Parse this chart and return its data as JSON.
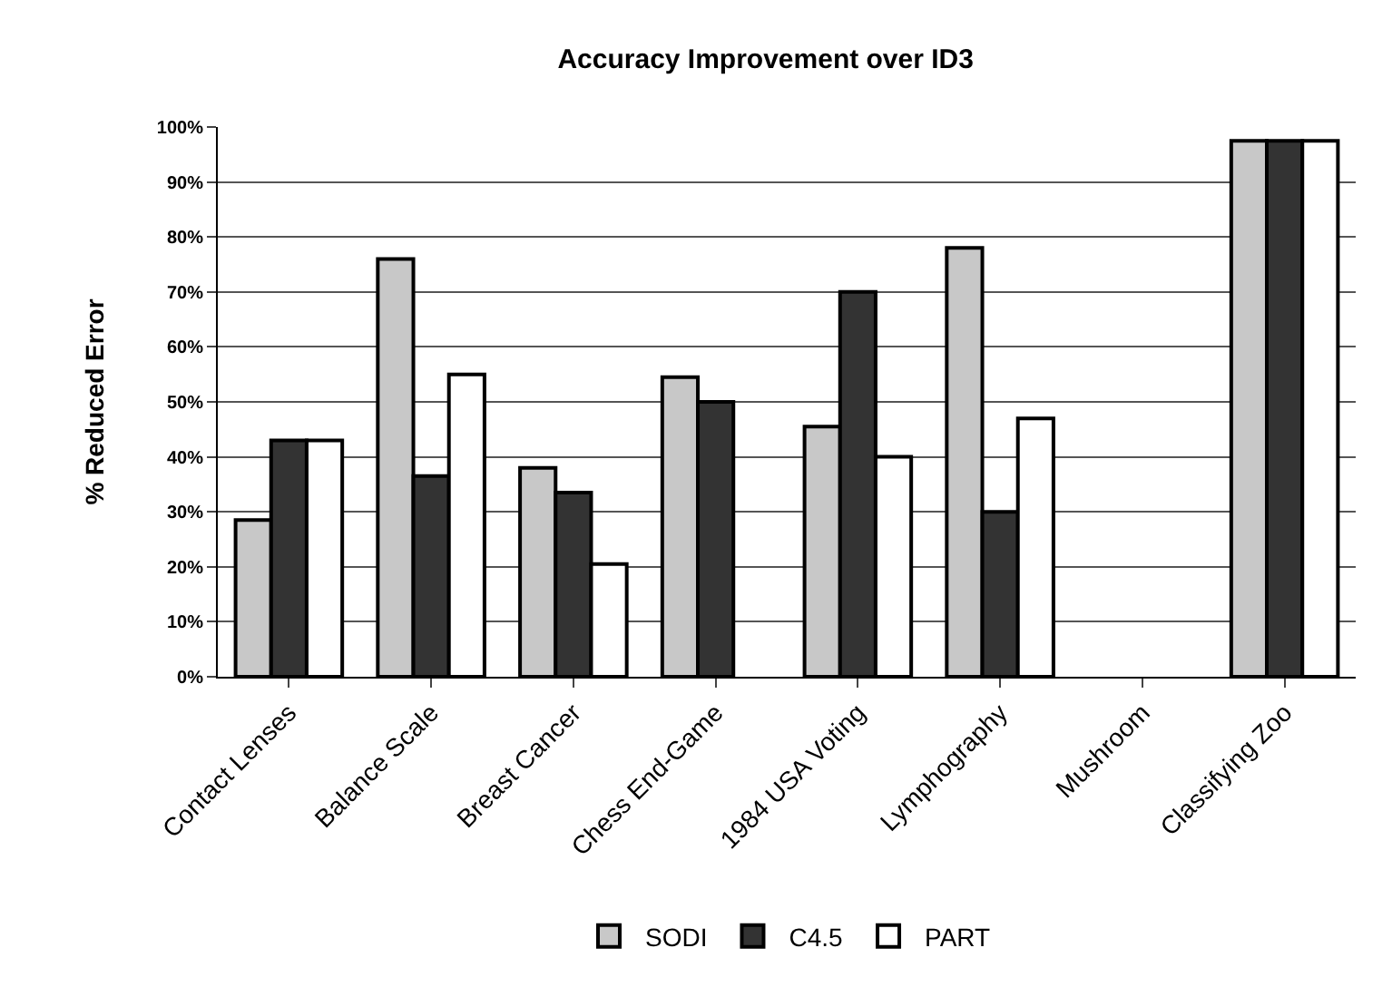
{
  "chart_data": {
    "type": "bar",
    "title": "Accuracy Improvement over ID3",
    "ylabel": "% Reduced Error",
    "categories": [
      "Contact Lenses",
      "Balance Scale",
      "Breast Cancer",
      "Chess End-Game",
      "1984 USA Voting",
      "Lymphography",
      "Mushroom",
      "Classifying Zoo"
    ],
    "series": [
      {
        "name": "SODI",
        "color": "#c8c8c8",
        "values": [
          28.5,
          76,
          38,
          54.5,
          45.5,
          78,
          null,
          97.5
        ]
      },
      {
        "name": "C4.5",
        "color": "#333333",
        "values": [
          43,
          36.5,
          33.5,
          50,
          70,
          30,
          null,
          97.5
        ]
      },
      {
        "name": "PART",
        "color": "#ffffff",
        "values": [
          43,
          55,
          20.5,
          null,
          40,
          47,
          null,
          97.5
        ]
      }
    ],
    "ylim": [
      0,
      100
    ],
    "yticks": [
      {
        "value": 0,
        "label": "0%"
      },
      {
        "value": 10,
        "label": "10%"
      },
      {
        "value": 20,
        "label": "20%"
      },
      {
        "value": 30,
        "label": "30%"
      },
      {
        "value": 40,
        "label": "40%"
      },
      {
        "value": 50,
        "label": "50%"
      },
      {
        "value": 60,
        "label": "60%"
      },
      {
        "value": 70,
        "label": "70%"
      },
      {
        "value": 80,
        "label": "80%"
      },
      {
        "value": 90,
        "label": "90%"
      },
      {
        "value": 100,
        "label": "100%"
      }
    ],
    "grid": "y",
    "legend": "bottom"
  }
}
